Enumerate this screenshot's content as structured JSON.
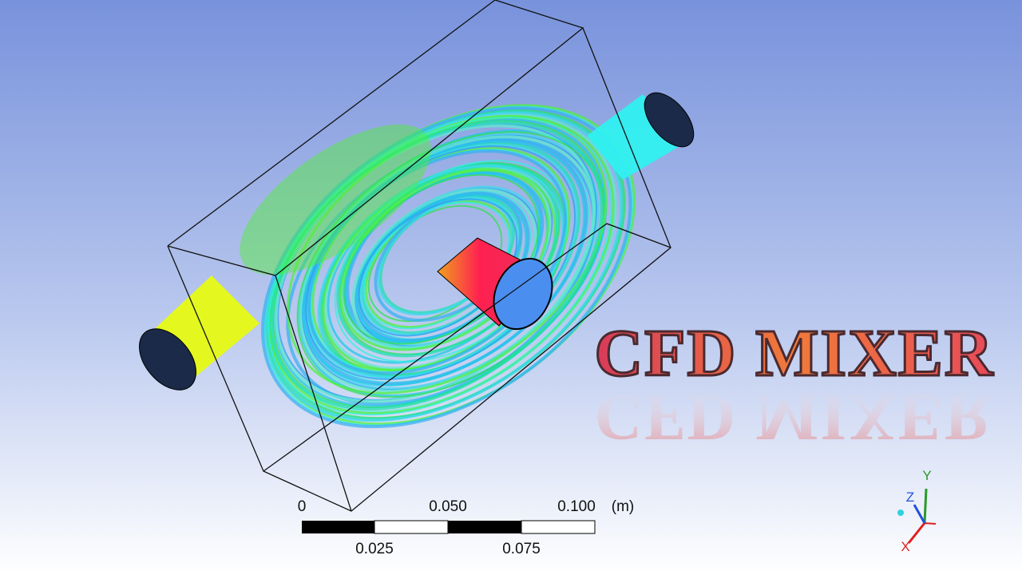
{
  "title": "CFD MIXER",
  "scale_bar": {
    "top_labels": [
      "0",
      "0.050",
      "0.100"
    ],
    "unit": "(m)",
    "bottom_labels": [
      "0.025",
      "0.075"
    ]
  },
  "triad": {
    "y": "Y",
    "z": "Z",
    "x": "X"
  }
}
